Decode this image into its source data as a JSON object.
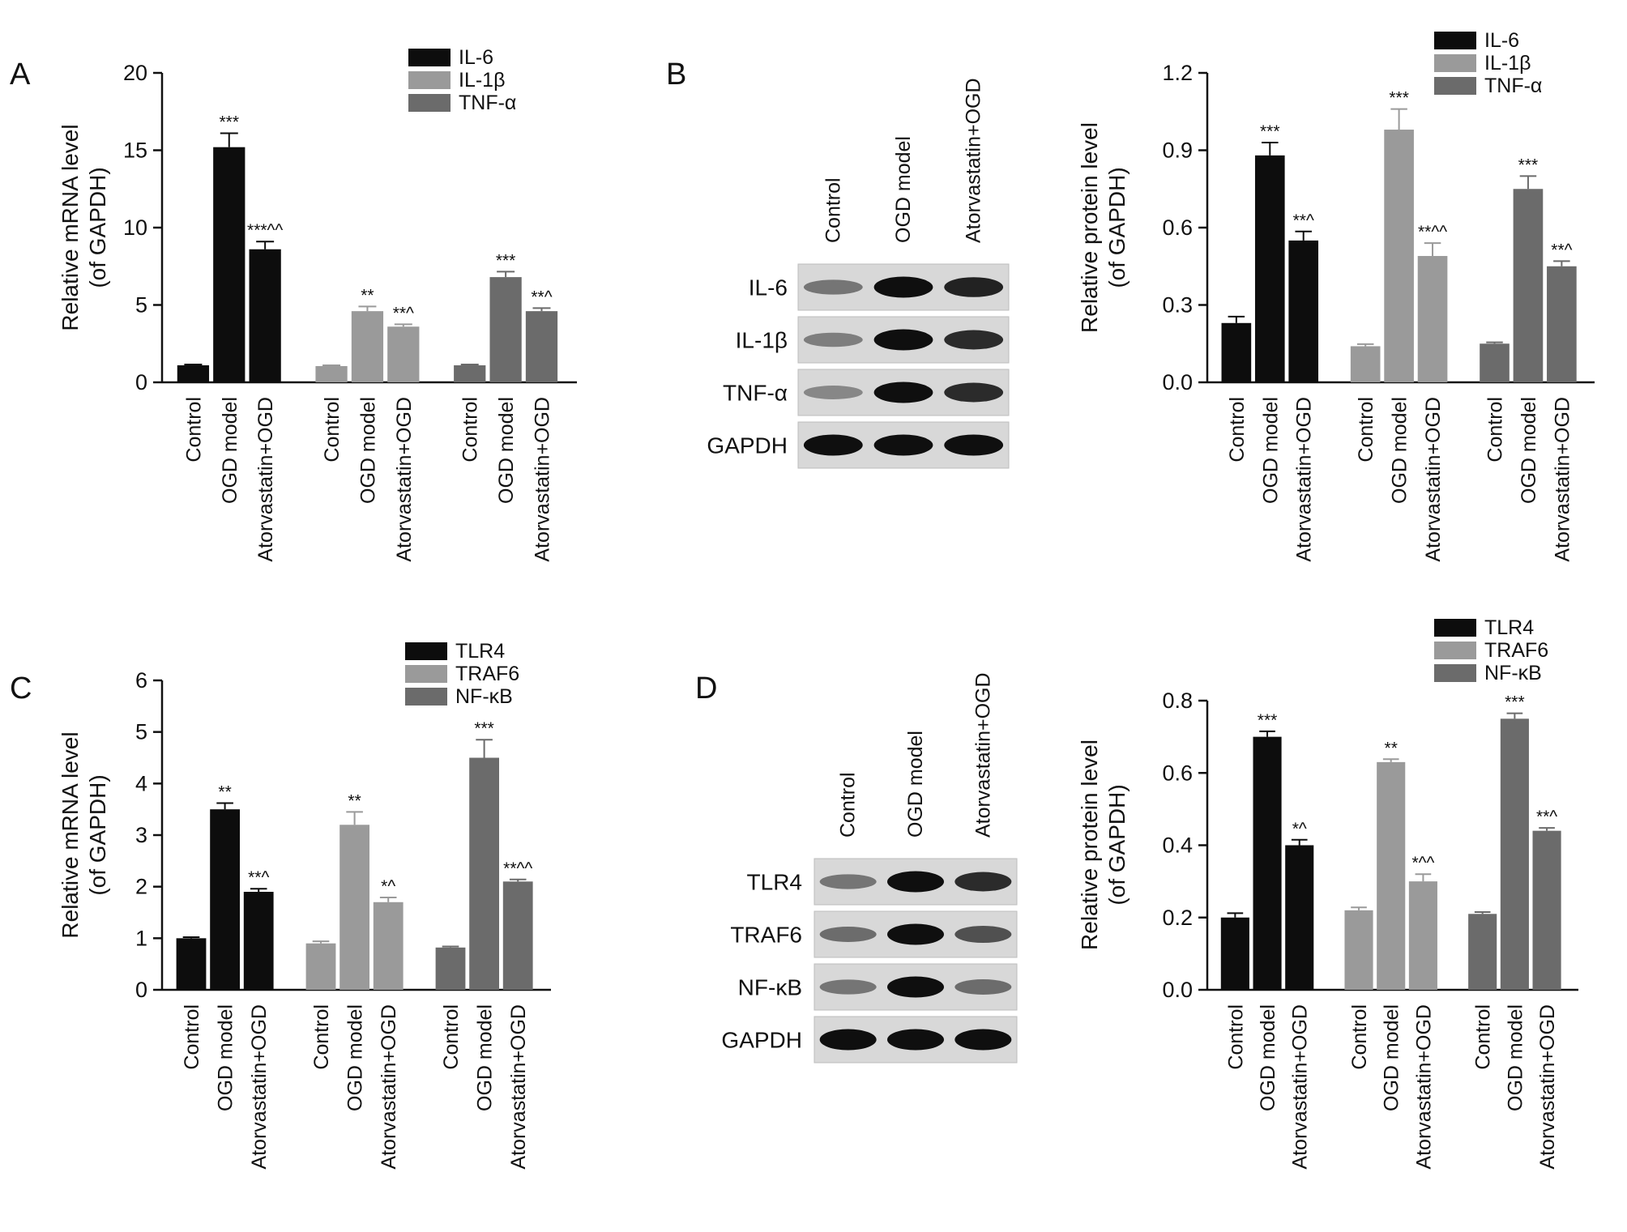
{
  "colors": {
    "black": "#0d0d0d",
    "light_gray": "#9a9a9a",
    "dark_gray": "#6b6b6b"
  },
  "panels": {
    "A": {
      "letter": "A"
    },
    "B": {
      "letter": "B",
      "blot": {
        "lanes": [
          "Control",
          "OGD model",
          "Atorvastatin+OGD"
        ],
        "bands": [
          "IL-6",
          "IL-1β",
          "TNF-α",
          "GAPDH"
        ]
      }
    },
    "C": {
      "letter": "C"
    },
    "D": {
      "letter": "D",
      "blot": {
        "lanes": [
          "Control",
          "OGD model",
          "Atorvastatin+OGD"
        ],
        "bands": [
          "TLR4",
          "TRAF6",
          "NF-κB",
          "GAPDH"
        ]
      }
    }
  },
  "chart_data": [
    {
      "panel": "A",
      "type": "bar",
      "ylabel": "Relative mRNA level (of GAPDH)",
      "ylim": [
        0,
        20
      ],
      "yticks": [
        "0",
        "5",
        "10",
        "15",
        "20"
      ],
      "categories": [
        "Control",
        "OGD model",
        "Atorvastatin+OGD"
      ],
      "legend_position": "top-right",
      "series": [
        {
          "name": "IL-6",
          "color": "#0d0d0d",
          "values": [
            1.1,
            15.2,
            8.6
          ],
          "errors": [
            0.05,
            0.9,
            0.5
          ],
          "annotations": [
            "",
            "***",
            "***^^"
          ]
        },
        {
          "name": "IL-1β",
          "color": "#9a9a9a",
          "values": [
            1.05,
            4.6,
            3.6
          ],
          "errors": [
            0.05,
            0.3,
            0.15
          ],
          "annotations": [
            "",
            "**",
            "**^"
          ]
        },
        {
          "name": "TNF-α",
          "color": "#6b6b6b",
          "values": [
            1.1,
            6.8,
            4.6
          ],
          "errors": [
            0.05,
            0.35,
            0.2
          ],
          "annotations": [
            "",
            "***",
            "**^"
          ]
        }
      ]
    },
    {
      "panel": "B",
      "type": "bar",
      "ylabel": "Relative protein level (of GAPDH)",
      "ylim": [
        0,
        1.2
      ],
      "yticks": [
        "0.0",
        "0.3",
        "0.6",
        "0.9",
        "1.2"
      ],
      "categories": [
        "Control",
        "OGD model",
        "Atorvastatin+OGD"
      ],
      "legend_position": "top-right",
      "series": [
        {
          "name": "IL-6",
          "color": "#0d0d0d",
          "values": [
            0.23,
            0.88,
            0.55
          ],
          "errors": [
            0.025,
            0.05,
            0.035
          ],
          "annotations": [
            "",
            "***",
            "**^"
          ]
        },
        {
          "name": "IL-1β",
          "color": "#9a9a9a",
          "values": [
            0.14,
            0.98,
            0.49
          ],
          "errors": [
            0.008,
            0.08,
            0.05
          ],
          "annotations": [
            "",
            "***",
            "**^^"
          ]
        },
        {
          "name": "TNF-α",
          "color": "#6b6b6b",
          "values": [
            0.15,
            0.75,
            0.45
          ],
          "errors": [
            0.005,
            0.05,
            0.02
          ],
          "annotations": [
            "",
            "***",
            "**^"
          ]
        }
      ]
    },
    {
      "panel": "C",
      "type": "bar",
      "ylabel": "Relative mRNA level (of GAPDH)",
      "ylim": [
        0,
        6
      ],
      "yticks": [
        "0",
        "1",
        "2",
        "3",
        "4",
        "5",
        "6"
      ],
      "categories": [
        "Control",
        "OGD model",
        "Atorvastatin+OGD"
      ],
      "legend_position": "top-right",
      "series": [
        {
          "name": "TLR4",
          "color": "#0d0d0d",
          "values": [
            1.0,
            3.5,
            1.9
          ],
          "errors": [
            0.02,
            0.12,
            0.06
          ],
          "annotations": [
            "",
            "**",
            "**^"
          ]
        },
        {
          "name": "TRAF6",
          "color": "#9a9a9a",
          "values": [
            0.9,
            3.2,
            1.7
          ],
          "errors": [
            0.04,
            0.25,
            0.09
          ],
          "annotations": [
            "",
            "**",
            "*^"
          ]
        },
        {
          "name": "NF-κB",
          "color": "#6b6b6b",
          "values": [
            0.82,
            4.5,
            2.1
          ],
          "errors": [
            0.02,
            0.35,
            0.04
          ],
          "annotations": [
            "",
            "***",
            "**^^"
          ]
        }
      ]
    },
    {
      "panel": "D",
      "type": "bar",
      "ylabel": "Relative protein level (of GAPDH)",
      "ylim": [
        0,
        0.8
      ],
      "yticks": [
        "0.0",
        "0.2",
        "0.4",
        "0.6",
        "0.8"
      ],
      "categories": [
        "Control",
        "OGD model",
        "Atorvastatin+OGD"
      ],
      "legend_position": "top-right",
      "series": [
        {
          "name": "TLR4",
          "color": "#0d0d0d",
          "values": [
            0.2,
            0.7,
            0.4
          ],
          "errors": [
            0.012,
            0.015,
            0.015
          ],
          "annotations": [
            "",
            "***",
            "*^"
          ]
        },
        {
          "name": "TRAF6",
          "color": "#9a9a9a",
          "values": [
            0.22,
            0.63,
            0.3
          ],
          "errors": [
            0.008,
            0.008,
            0.02
          ],
          "annotations": [
            "",
            "**",
            "*^^"
          ]
        },
        {
          "name": "NF-κB",
          "color": "#6b6b6b",
          "values": [
            0.21,
            0.75,
            0.44
          ],
          "errors": [
            0.005,
            0.015,
            0.008
          ],
          "annotations": [
            "",
            "***",
            "**^"
          ]
        }
      ]
    }
  ]
}
